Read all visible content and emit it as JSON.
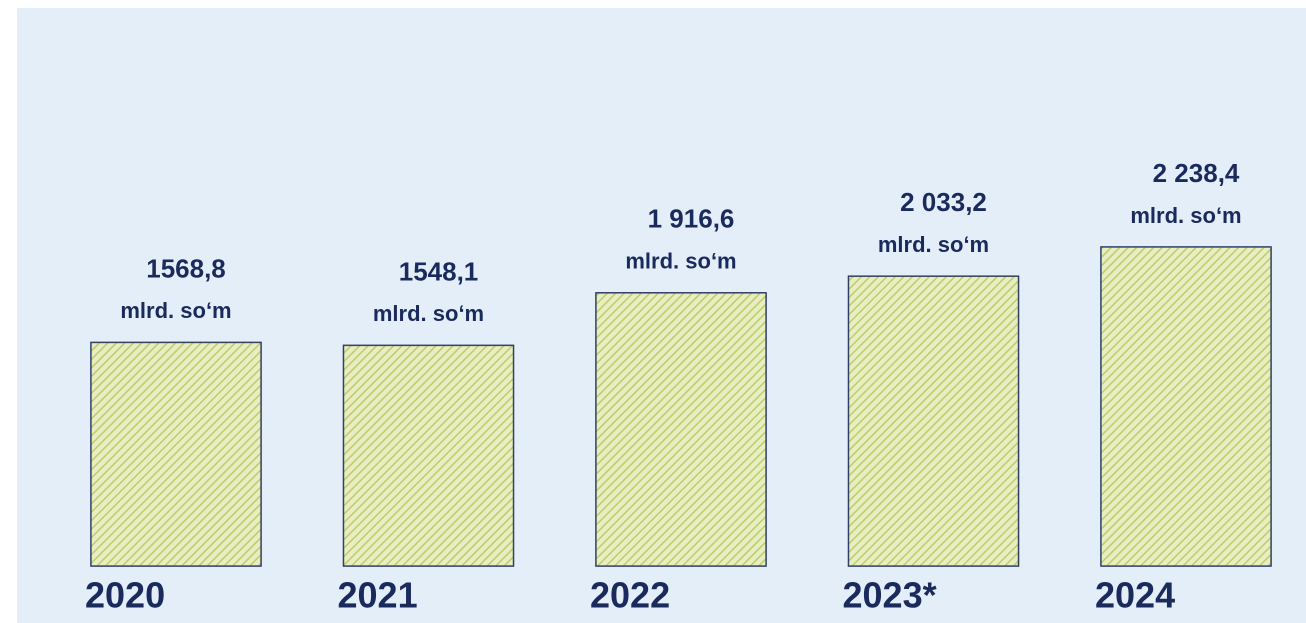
{
  "chart_data": {
    "type": "bar",
    "categories": [
      "2020",
      "2021",
      "2022",
      "2023*",
      "2024"
    ],
    "values": [
      1568.8,
      1548.1,
      1916.6,
      2033.2,
      2238.4
    ],
    "value_labels": [
      "1568,8",
      "1548,1",
      "1 916,6",
      "2 033,2",
      "2 238,4"
    ],
    "unit_label": "mlrd. so‘m",
    "color": "#c9d77c"
  }
}
